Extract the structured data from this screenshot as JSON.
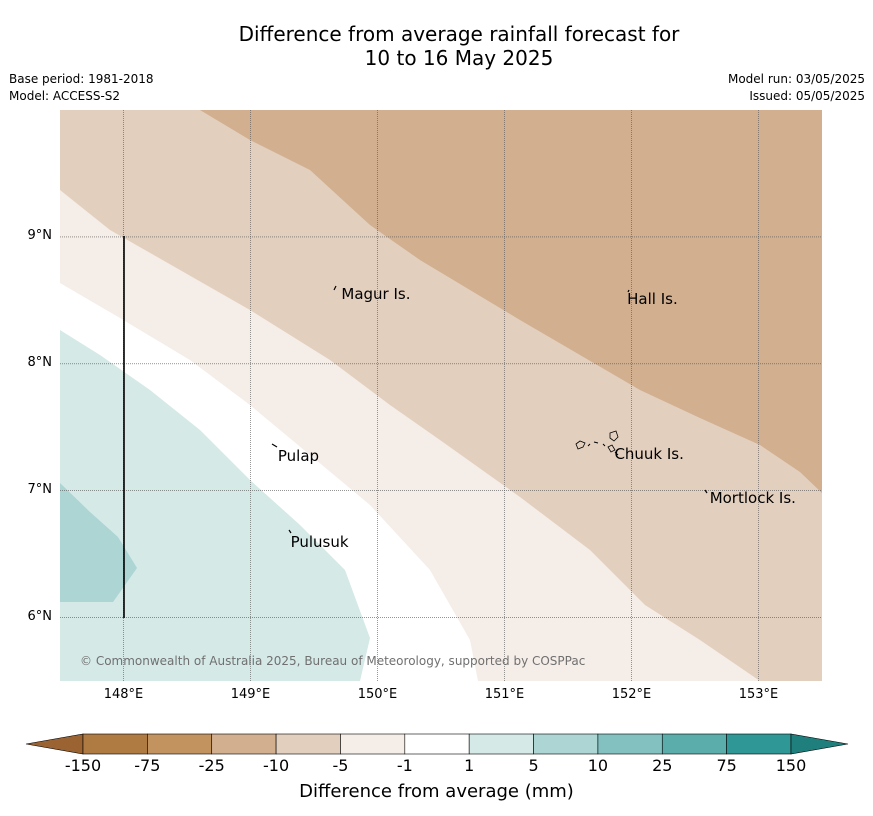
{
  "title": {
    "line1": "Difference from average rainfall forecast for",
    "line2": "10 to 16 May 2025"
  },
  "meta": {
    "base_period": "Base period: 1981-2018",
    "model": "Model: ACCESS-S2",
    "model_run": "Model run: 03/05/2025",
    "issued": "Issued: 05/05/2025"
  },
  "map": {
    "lon_range": [
      147.5,
      153.5
    ],
    "lat_range": [
      5.5,
      10.0
    ],
    "lon_ticks": [
      "148°E",
      "149°E",
      "150°E",
      "151°E",
      "152°E",
      "153°E"
    ],
    "lat_ticks": [
      "9°N",
      "8°N",
      "7°N",
      "6°N"
    ],
    "gridlines": true,
    "places": [
      {
        "name": "Magur Is.",
        "lon": 149.7,
        "lat": 8.56
      },
      {
        "name": "Hall Is.",
        "lon": 151.95,
        "lat": 8.52
      },
      {
        "name": "Pulap",
        "lon": 149.2,
        "lat": 7.28
      },
      {
        "name": "Chuuk Is.",
        "lon": 151.85,
        "lat": 7.3
      },
      {
        "name": "Mortlock Is.",
        "lon": 152.6,
        "lat": 6.95
      },
      {
        "name": "Pulusuk",
        "lon": 149.3,
        "lat": 6.6
      }
    ],
    "copyright": "© Commonwealth of Australia 2025, Bureau of Meteorology, supported by COSPPac"
  },
  "colorbar": {
    "title": "Difference from average (mm)",
    "ticks": [
      "-150",
      "-75",
      "-25",
      "-10",
      "-5",
      "-1",
      "1",
      "5",
      "10",
      "25",
      "75",
      "150"
    ],
    "colors": [
      "#b07a43",
      "#c2935f",
      "#d1af8f",
      "#e3cfbe",
      "#f5ede7",
      "#ffffff",
      "#d5e9e7",
      "#acd5d4",
      "#82c1c0",
      "#5aadab",
      "#2f9896"
    ],
    "extend_low_color": "#9a6331",
    "extend_high_color": "#1f7f7d"
  }
}
